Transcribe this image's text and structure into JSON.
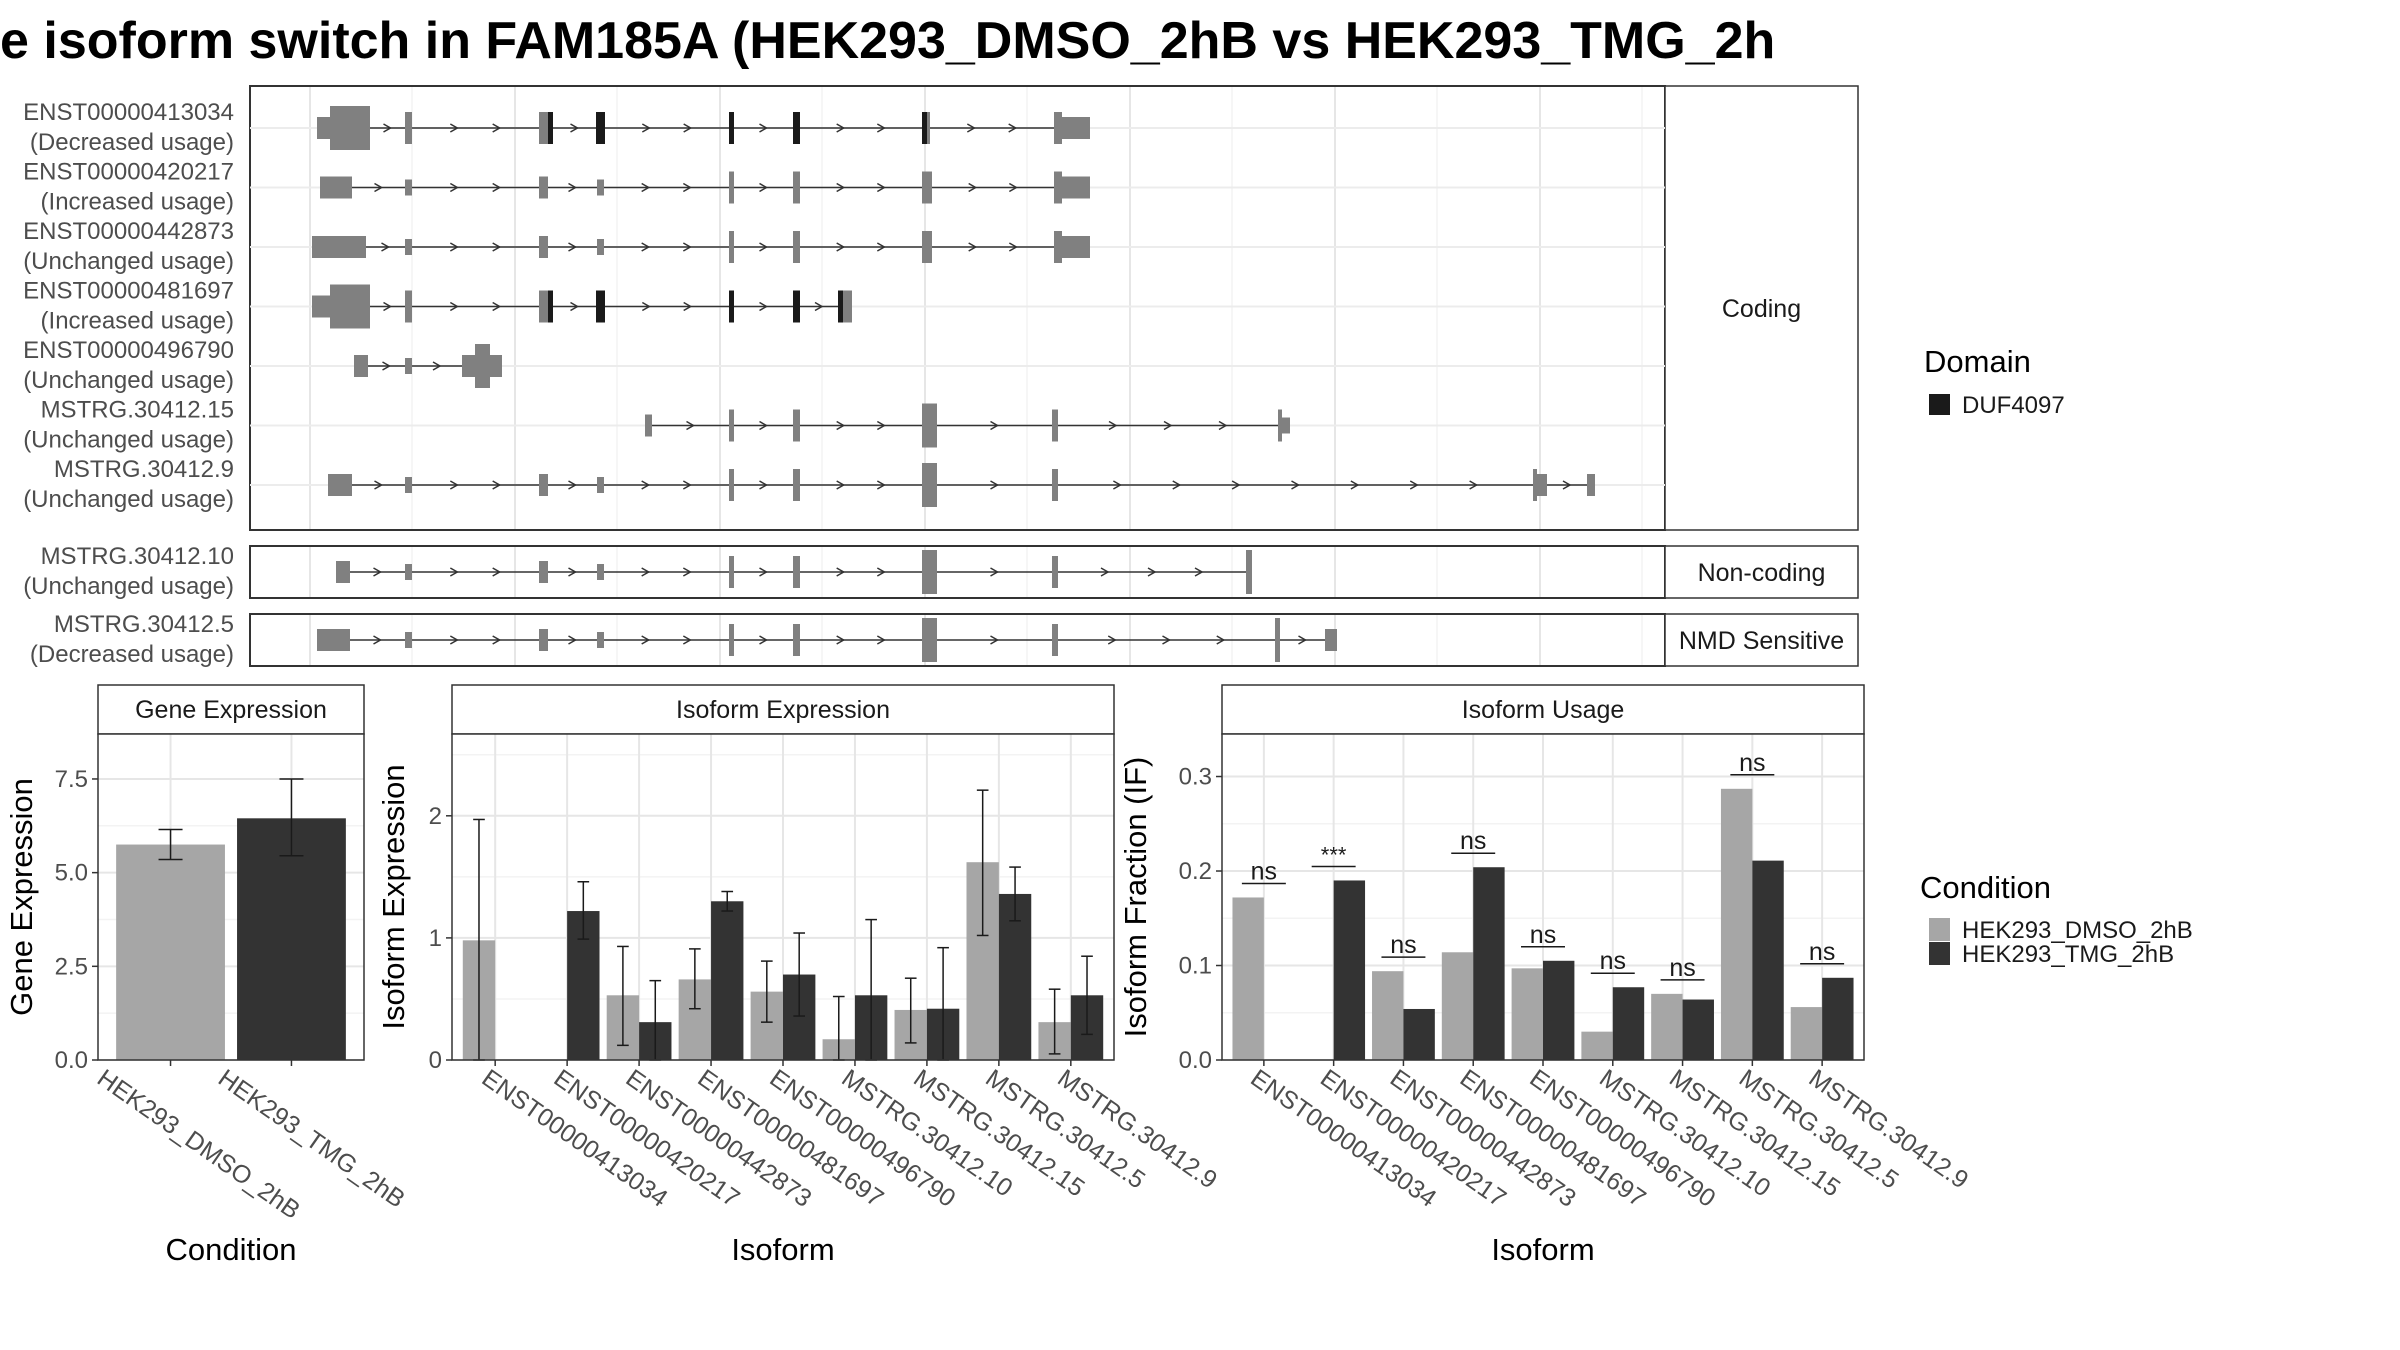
{
  "title": "e isoform switch in FAM185A (HEK293_DMSO_2hB vs HEK293_TMG_2h",
  "structure": {
    "groups": [
      {
        "label": "Coding",
        "transcripts": [
          {
            "name": "ENST00000413034",
            "usage": "(Decreased usage)"
          },
          {
            "name": "ENST00000420217",
            "usage": "(Increased usage)"
          },
          {
            "name": "ENST00000442873",
            "usage": "(Unchanged usage)"
          },
          {
            "name": "ENST00000481697",
            "usage": "(Increased usage)"
          },
          {
            "name": "ENST00000496790",
            "usage": "(Unchanged usage)"
          },
          {
            "name": "MSTRG.30412.15",
            "usage": "(Unchanged usage)"
          },
          {
            "name": "MSTRG.30412.9",
            "usage": "(Unchanged usage)"
          }
        ]
      },
      {
        "label": "Non-coding",
        "transcripts": [
          {
            "name": "MSTRG.30412.10",
            "usage": "(Unchanged usage)"
          }
        ]
      },
      {
        "label": "NMD Sensitive",
        "transcripts": [
          {
            "name": "MSTRG.30412.5",
            "usage": "(Decreased usage)"
          }
        ]
      }
    ],
    "domain_legend": {
      "title": "Domain",
      "items": [
        {
          "label": "DUF4097",
          "color": "#1a1a1a"
        }
      ]
    }
  },
  "condition_legend": {
    "title": "Condition",
    "items": [
      {
        "label": "HEK293_DMSO_2hB",
        "color": "#a6a6a6"
      },
      {
        "label": "HEK293_TMG_2hB",
        "color": "#333333"
      }
    ]
  },
  "chart_data": [
    {
      "type": "bar",
      "title": "Gene Expression",
      "xlabel": "Condition",
      "ylabel": "Gene Expression",
      "ylim": [
        0,
        8.7
      ],
      "yticks": [
        "0.0",
        "2.5",
        "5.0",
        "7.5"
      ],
      "categories": [
        "HEK293_DMSO_2hB",
        "HEK293_TMG_2hB"
      ],
      "values": [
        5.75,
        6.45
      ],
      "error_low": [
        5.35,
        5.45
      ],
      "error_high": [
        6.15,
        7.5
      ]
    },
    {
      "type": "bar",
      "title": "Isoform Expression",
      "xlabel": "Isoform",
      "ylabel": "Isoform Expression",
      "ylim": [
        0,
        2.67
      ],
      "yticks": [
        "0",
        "1",
        "2"
      ],
      "categories": [
        "ENST00000413034",
        "ENST00000420217",
        "ENST00000442873",
        "ENST00000481697",
        "ENST00000496790",
        "MSTRG.30412.10",
        "MSTRG.30412.15",
        "MSTRG.30412.5",
        "MSTRG.30412.9"
      ],
      "series": [
        {
          "name": "HEK293_DMSO_2hB",
          "values": [
            0.98,
            0.0,
            0.53,
            0.66,
            0.56,
            0.17,
            0.41,
            1.62,
            0.31
          ],
          "error_low": [
            0.0,
            0.0,
            0.12,
            0.42,
            0.31,
            0.0,
            0.14,
            1.02,
            0.05
          ],
          "error_high": [
            1.97,
            0.0,
            0.93,
            0.91,
            0.81,
            0.52,
            0.67,
            2.21,
            0.58
          ]
        },
        {
          "name": "HEK293_TMG_2hB",
          "values": [
            0.0,
            1.22,
            0.31,
            1.3,
            0.7,
            0.53,
            0.42,
            1.36,
            0.53
          ],
          "error_low": [
            0.0,
            0.99,
            0.0,
            1.22,
            0.36,
            0.0,
            0.0,
            1.14,
            0.21
          ],
          "error_high": [
            0.0,
            1.46,
            0.65,
            1.38,
            1.04,
            1.15,
            0.92,
            1.58,
            0.85
          ]
        }
      ]
    },
    {
      "type": "bar",
      "title": "Isoform Usage",
      "xlabel": "Isoform",
      "ylabel": "Isoform Fraction (IF)",
      "ylim": [
        0,
        0.345
      ],
      "yticks": [
        "0.0",
        "0.1",
        "0.2",
        "0.3"
      ],
      "categories": [
        "ENST00000413034",
        "ENST00000420217",
        "ENST00000442873",
        "ENST00000481697",
        "ENST00000496790",
        "MSTRG.30412.10",
        "MSTRG.30412.15",
        "MSTRG.30412.5",
        "MSTRG.30412.9"
      ],
      "series": [
        {
          "name": "HEK293_DMSO_2hB",
          "values": [
            0.172,
            0.0,
            0.094,
            0.114,
            0.097,
            0.03,
            0.07,
            0.287,
            0.056
          ]
        },
        {
          "name": "HEK293_TMG_2hB",
          "values": [
            0.0,
            0.19,
            0.054,
            0.204,
            0.105,
            0.077,
            0.064,
            0.211,
            0.087
          ]
        }
      ],
      "significance": [
        "ns",
        "***",
        "ns",
        "ns",
        "ns",
        "ns",
        "ns",
        "ns",
        "ns"
      ]
    }
  ]
}
